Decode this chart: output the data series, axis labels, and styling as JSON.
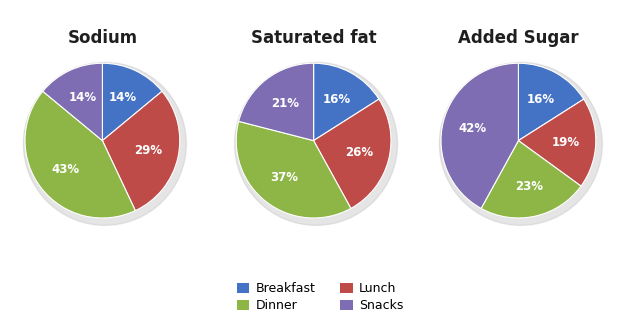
{
  "charts": [
    {
      "title": "Sodium",
      "values": [
        14,
        29,
        43,
        14
      ],
      "labels": [
        "14%",
        "29%",
        "43%",
        "14%"
      ],
      "start_angle": 90
    },
    {
      "title": "Saturated fat",
      "values": [
        16,
        26,
        37,
        21
      ],
      "labels": [
        "16%",
        "26%",
        "37%",
        "21%"
      ],
      "start_angle": 90
    },
    {
      "title": "Added Sugar",
      "values": [
        16,
        19,
        23,
        42
      ],
      "labels": [
        "16%",
        "19%",
        "23%",
        "42%"
      ],
      "start_angle": 90
    }
  ],
  "categories": [
    "Breakfast",
    "Lunch",
    "Dinner",
    "Snacks"
  ],
  "colors": [
    "#4472C4",
    "#BE4B48",
    "#8DB646",
    "#7E6DB2"
  ],
  "legend_labels": [
    "Breakfast",
    "Lunch",
    "Dinner",
    "Snacks"
  ],
  "background_color": "#FFFFFF",
  "title_fontsize": 12,
  "label_fontsize": 8.5
}
